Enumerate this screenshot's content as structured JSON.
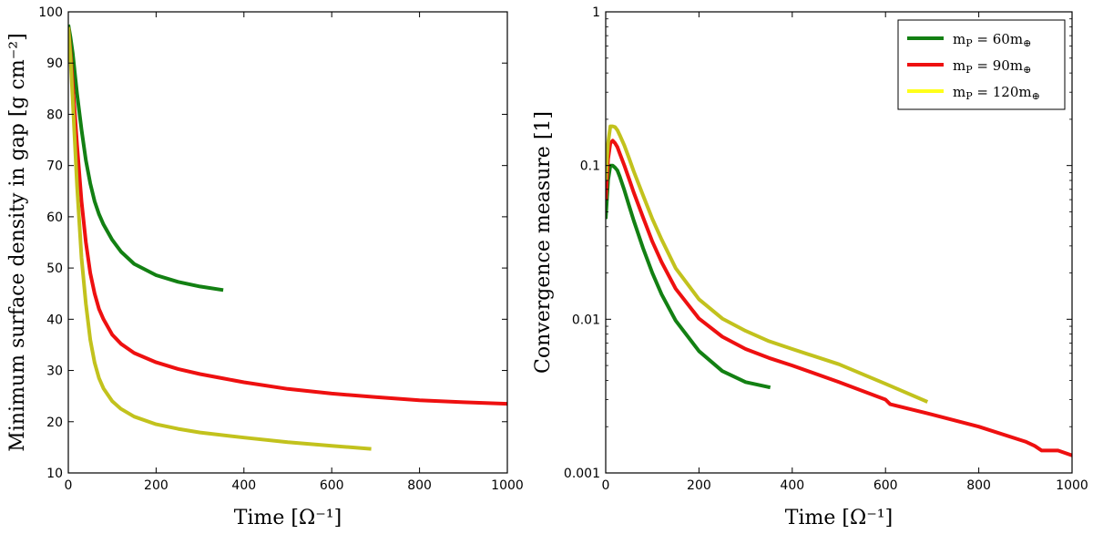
{
  "chart_data": [
    {
      "type": "line",
      "xlabel": "Time [Ω⁻¹]",
      "ylabel": "Minimum surface density in gap [g cm⁻²]",
      "xlim": [
        0,
        1000
      ],
      "ylim": [
        10,
        100
      ],
      "x_ticks": [
        "0",
        "200",
        "400",
        "600",
        "800",
        "1000"
      ],
      "y_ticks": [
        "10",
        "20",
        "30",
        "40",
        "50",
        "60",
        "70",
        "80",
        "90",
        "100"
      ],
      "grid": false,
      "series": [
        {
          "color": "#138013",
          "x": [
            0,
            5,
            10,
            20,
            30,
            40,
            50,
            60,
            70,
            80,
            100,
            120,
            150,
            200,
            250,
            300,
            353
          ],
          "y": [
            97.5,
            95,
            92,
            84,
            77,
            71,
            66.5,
            63,
            60.5,
            58.5,
            55.5,
            53.2,
            50.8,
            48.6,
            47.3,
            46.4,
            45.7
          ]
        },
        {
          "color": "#ee1010",
          "x": [
            0,
            5,
            10,
            20,
            30,
            40,
            50,
            60,
            70,
            80,
            100,
            120,
            150,
            200,
            250,
            300,
            350,
            400,
            500,
            600,
            700,
            800,
            900,
            1000
          ],
          "y": [
            97,
            92,
            86,
            74,
            63,
            55,
            49,
            45,
            42,
            40,
            37,
            35.2,
            33.4,
            31.6,
            30.3,
            29.3,
            28.5,
            27.7,
            26.4,
            25.5,
            24.8,
            24.2,
            23.8,
            23.5
          ]
        },
        {
          "color": "#c2c21d",
          "x": [
            0,
            5,
            10,
            20,
            30,
            40,
            50,
            60,
            70,
            80,
            100,
            120,
            150,
            200,
            250,
            300,
            400,
            500,
            600,
            690
          ],
          "y": [
            97,
            91,
            83,
            66,
            52,
            43,
            36,
            31.5,
            28.5,
            26.5,
            24,
            22.5,
            21,
            19.5,
            18.6,
            17.9,
            16.9,
            16,
            15.3,
            14.7
          ]
        }
      ]
    },
    {
      "type": "line",
      "xlabel": "Time [Ω⁻¹]",
      "ylabel": "Convergence measure [1]",
      "xlim": [
        0,
        1000
      ],
      "ylim": [
        0.001,
        1
      ],
      "yscale": "log",
      "x_ticks": [
        "0",
        "200",
        "400",
        "600",
        "800",
        "1000"
      ],
      "y_ticks": [
        "0.001",
        "0.01",
        "0.1",
        "1"
      ],
      "grid": false,
      "legend_position": "top-right",
      "legend": [
        {
          "label": "m",
          "sub": "P",
          "suffix": " = 60m",
          "sub2": "⊕",
          "color": "#138013"
        },
        {
          "label": "m",
          "sub": "P",
          "suffix": " = 90m",
          "sub2": "⊕",
          "color": "#ee1010"
        },
        {
          "label": "m",
          "sub": "P",
          "suffix": " = 120m",
          "sub2": "⊕",
          "color": "#ffff1a"
        }
      ],
      "series": [
        {
          "color": "#138013",
          "x": [
            0,
            5,
            10,
            15,
            20,
            25,
            30,
            40,
            50,
            60,
            80,
            100,
            120,
            150,
            200,
            250,
            300,
            353
          ],
          "y": [
            0.045,
            0.08,
            0.1,
            0.1,
            0.097,
            0.093,
            0.085,
            0.069,
            0.055,
            0.044,
            0.029,
            0.02,
            0.0145,
            0.0098,
            0.0062,
            0.0046,
            0.0039,
            0.0036
          ]
        },
        {
          "color": "#ee1010",
          "x": [
            0,
            5,
            10,
            15,
            20,
            25,
            30,
            40,
            50,
            60,
            80,
            100,
            120,
            150,
            200,
            250,
            300,
            350,
            400,
            500,
            600,
            610,
            700,
            800,
            900,
            920,
            935,
            950,
            970,
            1000
          ],
          "y": [
            0.06,
            0.11,
            0.14,
            0.145,
            0.14,
            0.132,
            0.12,
            0.1,
            0.082,
            0.067,
            0.046,
            0.032,
            0.0235,
            0.0158,
            0.0101,
            0.0077,
            0.0064,
            0.0056,
            0.005,
            0.0039,
            0.003,
            0.0028,
            0.0024,
            0.002,
            0.0016,
            0.0015,
            0.0014,
            0.0014,
            0.0014,
            0.0013
          ]
        },
        {
          "color": "#c2c21d",
          "x": [
            0,
            5,
            10,
            15,
            20,
            25,
            30,
            40,
            50,
            60,
            80,
            100,
            120,
            150,
            200,
            250,
            300,
            350,
            400,
            500,
            600,
            690
          ],
          "y": [
            0.08,
            0.14,
            0.18,
            0.18,
            0.178,
            0.17,
            0.158,
            0.135,
            0.112,
            0.092,
            0.064,
            0.045,
            0.033,
            0.0215,
            0.0135,
            0.0101,
            0.0084,
            0.0072,
            0.0064,
            0.0051,
            0.0038,
            0.0029
          ]
        }
      ]
    }
  ]
}
